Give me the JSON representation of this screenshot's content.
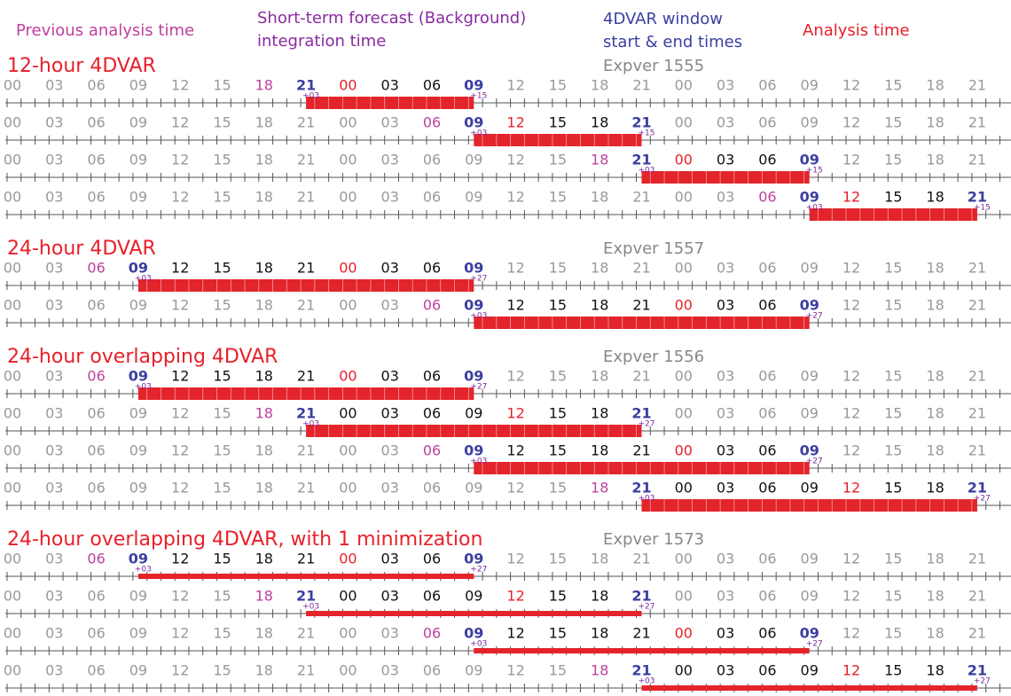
{
  "legend": {
    "previous": [
      "Previous analysis time"
    ],
    "background": [
      "Short-term forecast (Background)",
      "integration time"
    ],
    "window": [
      "4DVAR window",
      "start & end times"
    ],
    "analysis": [
      "Analysis time"
    ]
  },
  "hours": [
    "00",
    "03",
    "06",
    "09",
    "12",
    "15",
    "18",
    "21",
    "00",
    "03",
    "06",
    "09",
    "12",
    "15",
    "18",
    "21",
    "00",
    "03",
    "06",
    "09",
    "12",
    "15",
    "18",
    "21"
  ],
  "sections": [
    {
      "title": "12-hour 4DVAR",
      "expver": "Expver 1555",
      "bar": "thick",
      "rows": [
        {
          "start": 7,
          "analysis": 8,
          "end": 11,
          "start_label": "+03",
          "end_label": "+15"
        },
        {
          "start": 11,
          "analysis": 12,
          "end": 15,
          "start_label": "+03",
          "end_label": "+15"
        },
        {
          "start": 15,
          "analysis": 16,
          "end": 19,
          "start_label": "+03",
          "end_label": "+15"
        },
        {
          "start": 19,
          "analysis": 20,
          "end": 23,
          "start_label": "+03",
          "end_label": "+15"
        }
      ]
    },
    {
      "title": "24-hour 4DVAR",
      "expver": "Expver 1557",
      "bar": "thick",
      "rows": [
        {
          "start": 3,
          "analysis": 8,
          "end": 11,
          "start_label": "+03",
          "end_label": "+27"
        },
        {
          "start": 11,
          "analysis": 16,
          "end": 19,
          "start_label": "+03",
          "end_label": "+27"
        }
      ]
    },
    {
      "title": "24-hour overlapping 4DVAR",
      "expver": "Expver 1556",
      "bar": "thick",
      "rows": [
        {
          "start": 3,
          "analysis": 8,
          "end": 11,
          "start_label": "+03",
          "end_label": "+27"
        },
        {
          "start": 7,
          "analysis": 12,
          "end": 15,
          "start_label": "+03",
          "end_label": "+27"
        },
        {
          "start": 11,
          "analysis": 16,
          "end": 19,
          "start_label": "+03",
          "end_label": "+27"
        },
        {
          "start": 15,
          "analysis": 20,
          "end": 23,
          "start_label": "+03",
          "end_label": "+27"
        }
      ]
    },
    {
      "title": "24-hour overlapping 4DVAR, with 1 minimization",
      "expver": "Expver 1573",
      "bar": "thin",
      "rows": [
        {
          "start": 3,
          "analysis": 8,
          "end": 11,
          "start_label": "+03",
          "end_label": "+27"
        },
        {
          "start": 7,
          "analysis": 12,
          "end": 15,
          "start_label": "+03",
          "end_label": "+27"
        },
        {
          "start": 11,
          "analysis": 16,
          "end": 19,
          "start_label": "+03",
          "end_label": "+27"
        },
        {
          "start": 15,
          "analysis": 20,
          "end": 23,
          "start_label": "+03",
          "end_label": "+27"
        }
      ]
    }
  ]
}
